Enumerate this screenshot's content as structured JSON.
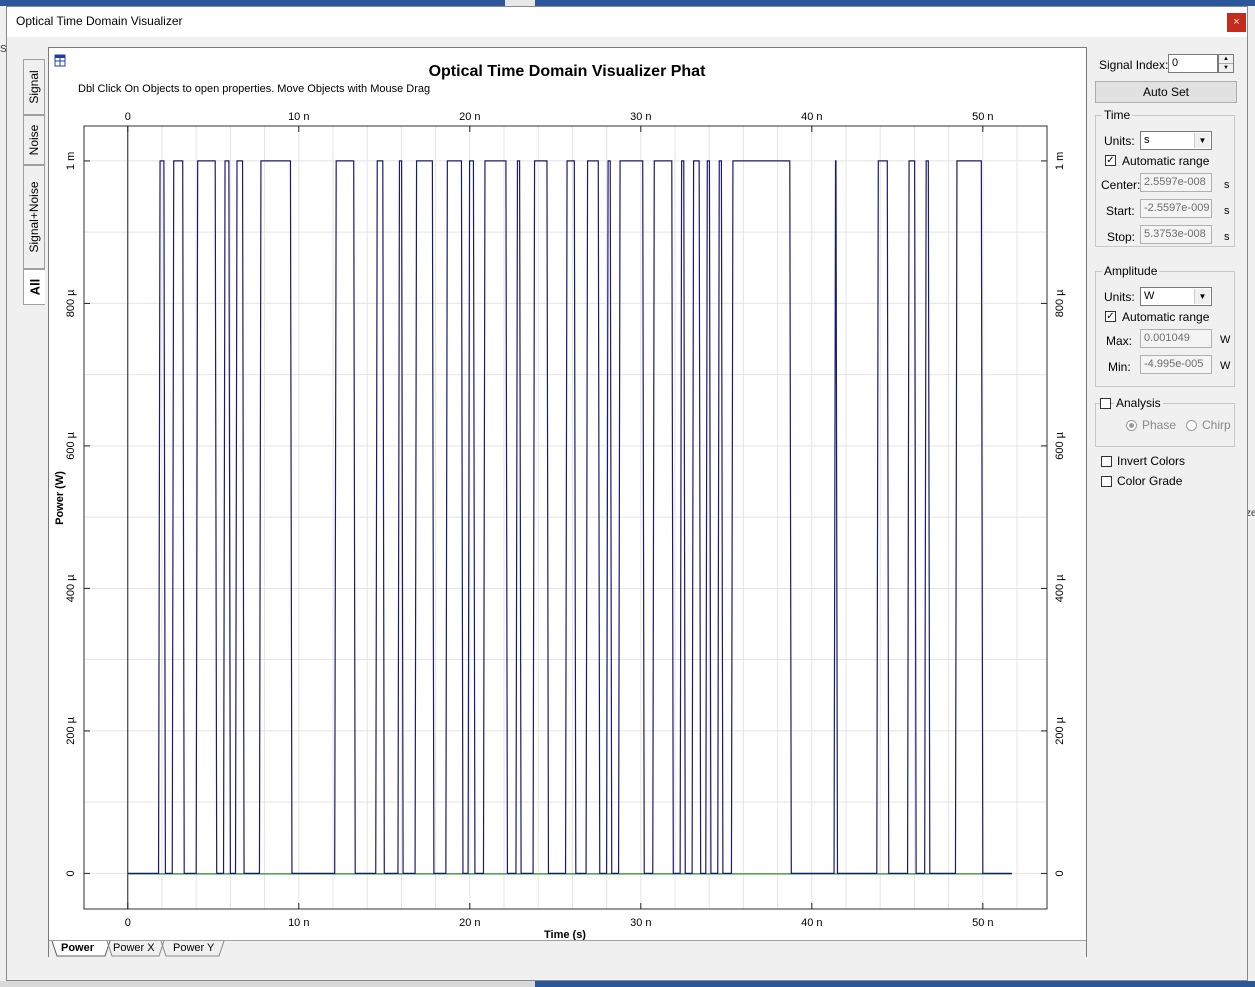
{
  "window": {
    "title": "Optical Time Domain Visualizer",
    "close_glyph": "×"
  },
  "behind": {
    "left_fragment": "Sc",
    "right_fragment": "ze"
  },
  "side_tabs": [
    {
      "label": "Signal",
      "active": false
    },
    {
      "label": "Noise",
      "active": false
    },
    {
      "label": "Signal+Noise",
      "active": false
    },
    {
      "label": "All",
      "active": true
    }
  ],
  "plot": {
    "header_icon": "grid-icon",
    "hint": "Dbl Click On Objects to open properties.  Move Objects with Mouse Drag",
    "bottom_tabs": [
      "Power",
      "Power X",
      "Power Y"
    ],
    "active_tab": "Power"
  },
  "chart_data": {
    "type": "line",
    "title": "Optical Time Domain Visualizer Phat",
    "xlabel": "Time (s)",
    "ylabel": "Power (W)",
    "x_unit": "s",
    "xlim": [
      -2.5597e-09,
      5.3753e-08
    ],
    "ylim": [
      -4.995e-05,
      0.001049
    ],
    "x_ticks": [
      0,
      1e-08,
      2e-08,
      3e-08,
      4e-08,
      5e-08
    ],
    "x_tick_labels": [
      "0",
      "10 n",
      "20 n",
      "30 n",
      "40 n",
      "50 n"
    ],
    "y_ticks": [
      0,
      0.0002,
      0.0004,
      0.0006,
      0.0008,
      0.001
    ],
    "y_tick_labels": [
      "0",
      "200 µ",
      "400 µ",
      "600 µ",
      "800 µ",
      "1 m"
    ],
    "grid": true,
    "signal_color": "#1a1a6e",
    "noise_color": "#2e8b2e",
    "high_level": 0.001,
    "low_level": 0,
    "high_intervals_ns": [
      [
        1.8,
        2.2
      ],
      [
        2.6,
        3.3
      ],
      [
        4.0,
        5.2
      ],
      [
        5.6,
        6.0
      ],
      [
        6.3,
        6.8
      ],
      [
        7.7,
        9.6
      ],
      [
        12.1,
        13.3
      ],
      [
        14.5,
        15.0
      ],
      [
        15.8,
        16.1
      ],
      [
        16.8,
        17.9
      ],
      [
        18.6,
        19.6
      ],
      [
        19.9,
        20.3
      ],
      [
        20.8,
        22.2
      ],
      [
        22.7,
        23.0
      ],
      [
        23.7,
        24.6
      ],
      [
        25.6,
        26.2
      ],
      [
        26.8,
        27.6
      ],
      [
        28.0,
        28.3
      ],
      [
        28.7,
        30.2
      ],
      [
        30.7,
        31.9
      ],
      [
        32.3,
        32.6
      ],
      [
        33.0,
        33.5
      ],
      [
        33.8,
        34.1
      ],
      [
        34.5,
        34.8
      ],
      [
        35.3,
        38.8
      ],
      [
        41.3,
        41.5
      ],
      [
        43.8,
        44.5
      ],
      [
        45.6,
        46.1
      ],
      [
        46.6,
        46.9
      ],
      [
        48.4,
        50.0
      ]
    ]
  },
  "panel": {
    "signal_index_label": "Signal Index:",
    "signal_index_value": "0",
    "auto_set_label": "Auto Set",
    "time": {
      "title": "Time",
      "units_label": "Units:",
      "units_value": "s",
      "auto_range_label": "Automatic range",
      "auto_range_checked": true,
      "center_label": "Center:",
      "center_value": "2.5597e-008",
      "start_label": "Start:",
      "start_value": "-2.5597e-009",
      "stop_label": "Stop:",
      "stop_value": "5.3753e-008",
      "unit": "s"
    },
    "amplitude": {
      "title": "Amplitude",
      "units_label": "Units:",
      "units_value": "W",
      "auto_range_label": "Automatic range",
      "auto_range_checked": true,
      "max_label": "Max:",
      "max_value": "0.001049",
      "min_label": "Min:",
      "min_value": "-4.995e-005",
      "unit": "W"
    },
    "analysis": {
      "title": "Analysis",
      "checked": false,
      "phase_label": "Phase",
      "chirp_label": "Chirp",
      "selected": "Phase"
    },
    "invert_colors_label": "Invert Colors",
    "color_grade_label": "Color Grade"
  }
}
